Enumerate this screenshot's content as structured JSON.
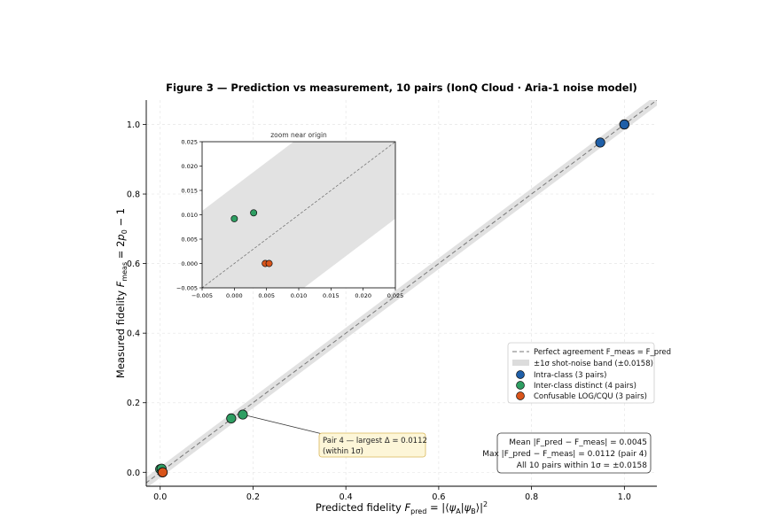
{
  "chart_data": [
    {
      "type": "scatter",
      "title": "Figure 3 — Prediction vs measurement, 10 pairs (IonQ Cloud · Aria-1 noise model)",
      "xlabel": "Predicted fidelity  F_pred = |⟨ψA|ψB⟩|²",
      "ylabel": "Measured fidelity  F_meas = 2p₀ − 1",
      "xlim": [
        -0.03,
        1.07
      ],
      "ylim": [
        -0.04,
        1.07
      ],
      "xticks": [
        "0.0",
        "0.2",
        "0.4",
        "0.6",
        "0.8",
        "1.0"
      ],
      "yticks": [
        "0.0",
        "0.2",
        "0.4",
        "0.6",
        "0.8",
        "1.0"
      ],
      "grid": true,
      "legend_position": "center-right",
      "reference_line": {
        "name": "Perfect agreement  F_meas = F_pred",
        "color": "#777777"
      },
      "band": {
        "name": "±1σ shot-noise band (±0.0158)",
        "halfwidth": 0.0158,
        "color": "#dddddd"
      },
      "series": [
        {
          "name": "Intra-class (3 pairs)",
          "color": "#1f5fa8",
          "points": [
            {
              "x": 1.0,
              "y": 1.0
            },
            {
              "x": 1.0,
              "y": 1.0
            },
            {
              "x": 0.948,
              "y": 0.948
            }
          ]
        },
        {
          "name": "Inter-class distinct (4 pairs)",
          "color": "#2e9e62",
          "points": [
            {
              "x": 0.0,
              "y": 0.0092
            },
            {
              "x": 0.003,
              "y": 0.0104
            },
            {
              "x": 0.153,
              "y": 0.155
            },
            {
              "x": 0.178,
              "y": 0.166
            }
          ]
        },
        {
          "name": "Confusable LOG/CQU (3 pairs)",
          "color": "#d9541a",
          "points": [
            {
              "x": 0.0048,
              "y": 0.0
            },
            {
              "x": 0.0052,
              "y": 0.0
            },
            {
              "x": 0.0054,
              "y": 0.0
            }
          ]
        }
      ],
      "annotation": {
        "line1": "Pair 4 — largest Δ = 0.0112",
        "line2": "(within 1σ)",
        "point": {
          "x": 0.178,
          "y": 0.166
        }
      },
      "stats_box": {
        "line1": "Mean |F_pred − F_meas| = 0.0045",
        "line2": "Max  |F_pred − F_meas| = 0.0112 (pair 4)",
        "line3": "All 10 pairs within 1σ = ±0.0158"
      }
    },
    {
      "type": "scatter",
      "title": "zoom near origin",
      "xlim": [
        -0.005,
        0.025
      ],
      "ylim": [
        -0.005,
        0.025
      ],
      "xticks": [
        "−0.005",
        "0.000",
        "0.005",
        "0.010",
        "0.015",
        "0.020",
        "0.025"
      ],
      "yticks": [
        "−0.005",
        "0.000",
        "0.005",
        "0.010",
        "0.015",
        "0.020",
        "0.025"
      ],
      "band_halfwidth": 0.0158,
      "points": [
        {
          "x": 0.0,
          "y": 0.0092,
          "color": "#2e9e62"
        },
        {
          "x": 0.003,
          "y": 0.0104,
          "color": "#2e9e62"
        },
        {
          "x": 0.0048,
          "y": 0.0,
          "color": "#d9541a"
        },
        {
          "x": 0.0054,
          "y": 0.0,
          "color": "#d9541a"
        }
      ]
    }
  ]
}
